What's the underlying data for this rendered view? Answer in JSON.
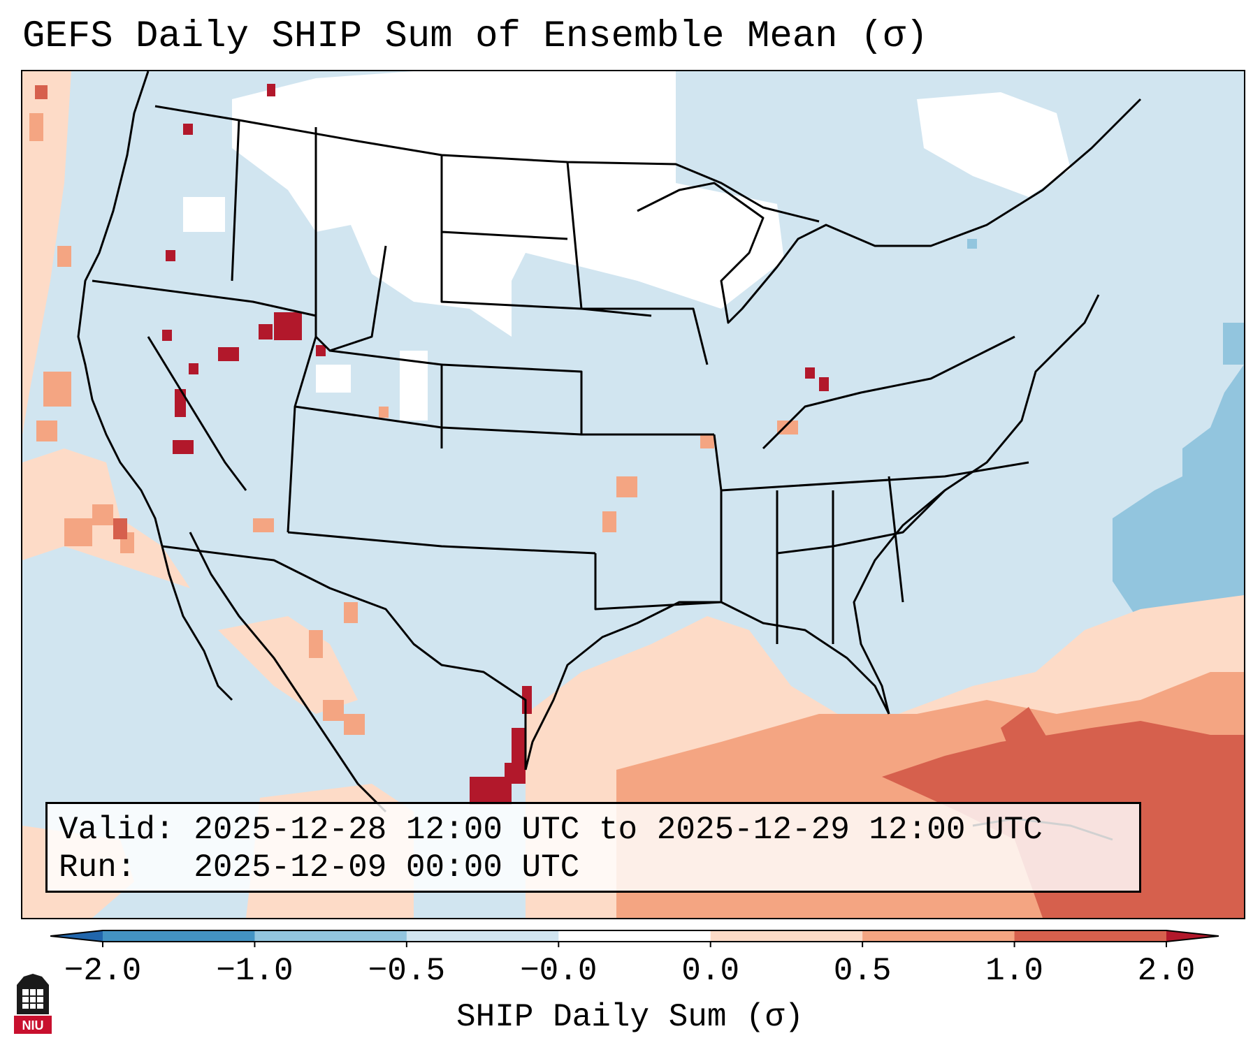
{
  "title": "GEFS Daily SHIP Sum of Ensemble Mean (σ)",
  "info": {
    "valid_label": "Valid:",
    "valid_value": "2025-12-28 12:00 UTC to 2025-12-29 12:00 UTC",
    "run_label": "Run:",
    "run_value": "2025-12-09 00:00 UTC"
  },
  "colorbar": {
    "label": "SHIP Daily Sum (σ)",
    "ticks": [
      "−2.0",
      "−1.0",
      "−0.5",
      "−0.0",
      "0.0",
      "0.5",
      "1.0",
      "2.0"
    ],
    "colors": [
      "#4393c3",
      "#92c5de",
      "#d1e5f0",
      "#ffffff",
      "#fddbc7",
      "#f4a582",
      "#d6604d"
    ],
    "under_color": "#2166ac",
    "over_color": "#b2182b"
  },
  "logo": {
    "text": "NIU",
    "icon": "niu-logo-icon"
  }
}
